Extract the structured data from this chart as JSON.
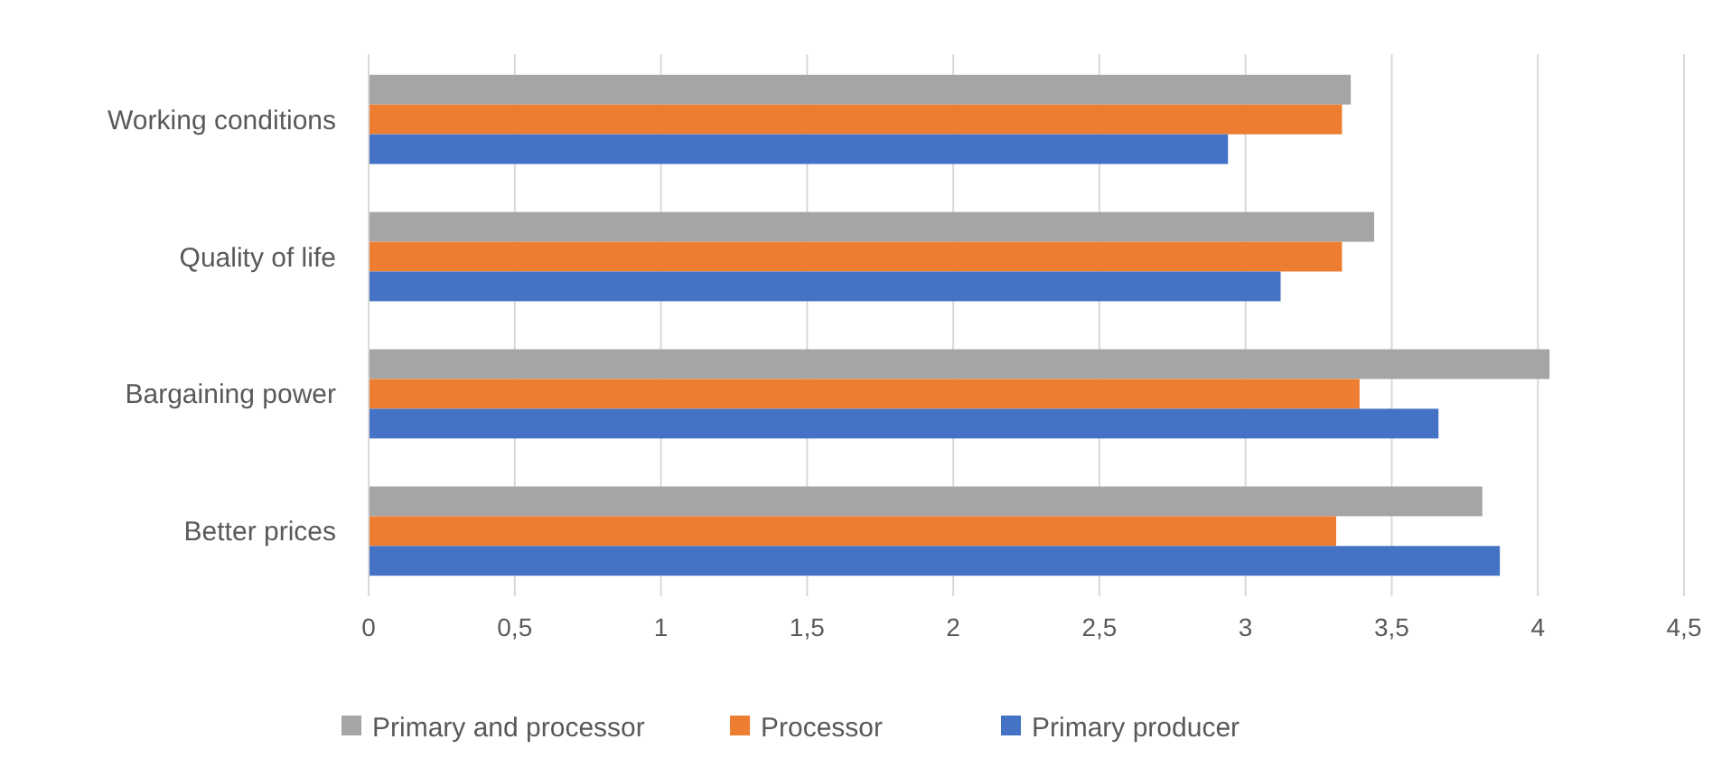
{
  "chart_data": {
    "type": "bar",
    "orientation": "horizontal",
    "categories": [
      "Working conditions",
      "Quality of life",
      "Bargaining power",
      "Better prices"
    ],
    "series": [
      {
        "name": "Primary and processor",
        "color": "#a5a5a5",
        "values": [
          3.36,
          3.44,
          4.04,
          3.81
        ]
      },
      {
        "name": "Processor",
        "color": "#ed7d31",
        "values": [
          3.33,
          3.33,
          3.39,
          3.31
        ]
      },
      {
        "name": "Primary producer",
        "color": "#4472c4",
        "values": [
          2.94,
          3.12,
          3.66,
          3.87
        ]
      }
    ],
    "xlim": [
      0,
      4.5
    ],
    "xticks": [
      0,
      {
        "value": 0.5,
        "label": "0,5"
      },
      1,
      {
        "value": 1.5,
        "label": "1,5"
      },
      2,
      {
        "value": 2.5,
        "label": "2,5"
      },
      3,
      {
        "value": 3.5,
        "label": "3,5"
      },
      4,
      {
        "value": 4.5,
        "label": "4,5"
      }
    ],
    "grid": "x",
    "legend": "bottom"
  }
}
